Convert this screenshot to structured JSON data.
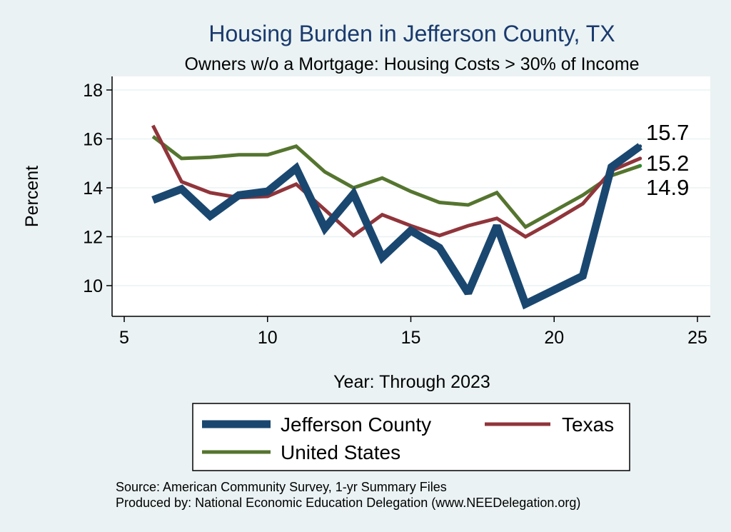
{
  "chart_data": {
    "type": "line",
    "title": "Housing Burden in Jefferson County, TX",
    "subtitle": "Owners w/o a Mortgage: Housing Costs > 30% of Income",
    "xlabel": "Year: Through 2023",
    "ylabel": "Percent",
    "xlim": [
      5,
      25
    ],
    "ylim": [
      9,
      18.5
    ],
    "xticks": [
      5,
      10,
      15,
      20,
      25
    ],
    "yticks": [
      10,
      12,
      14,
      16,
      18
    ],
    "grid": true,
    "legend_position": "bottom",
    "series": [
      {
        "name": "Jefferson County",
        "color": "#1a476f",
        "x": [
          6,
          7,
          8,
          9,
          10,
          11,
          12,
          13,
          14,
          15,
          16,
          17,
          18,
          19,
          21,
          22,
          23
        ],
        "values": [
          13.5,
          13.95,
          12.85,
          13.7,
          13.85,
          14.8,
          12.35,
          13.75,
          11.15,
          12.25,
          11.55,
          9.7,
          12.45,
          9.25,
          10.4,
          14.85,
          15.7
        ],
        "end_label": "15.7"
      },
      {
        "name": "Texas",
        "color": "#90353b",
        "x": [
          6,
          7,
          8,
          9,
          10,
          11,
          12,
          13,
          14,
          15,
          16,
          17,
          18,
          19,
          20,
          21,
          22,
          23
        ],
        "values": [
          16.55,
          14.25,
          13.8,
          13.6,
          13.65,
          14.15,
          13.1,
          12.05,
          12.9,
          12.45,
          12.05,
          12.45,
          12.75,
          12.0,
          12.65,
          13.35,
          14.7,
          15.2
        ],
        "end_label": "15.2"
      },
      {
        "name": "United States",
        "color": "#55752f",
        "x": [
          6,
          7,
          8,
          9,
          10,
          11,
          12,
          13,
          14,
          15,
          16,
          17,
          18,
          19,
          20,
          21,
          22,
          23
        ],
        "values": [
          16.1,
          15.2,
          15.25,
          15.35,
          15.35,
          15.7,
          14.65,
          14.0,
          14.4,
          13.85,
          13.4,
          13.3,
          13.8,
          12.4,
          13.05,
          13.7,
          14.5,
          14.9
        ],
        "end_label": "14.9"
      }
    ]
  },
  "source": "Source: American Community Survey, 1-yr Summary Files",
  "producer": "Produced by: National Economic Education Delegation (www.NEEDelegation.org)"
}
